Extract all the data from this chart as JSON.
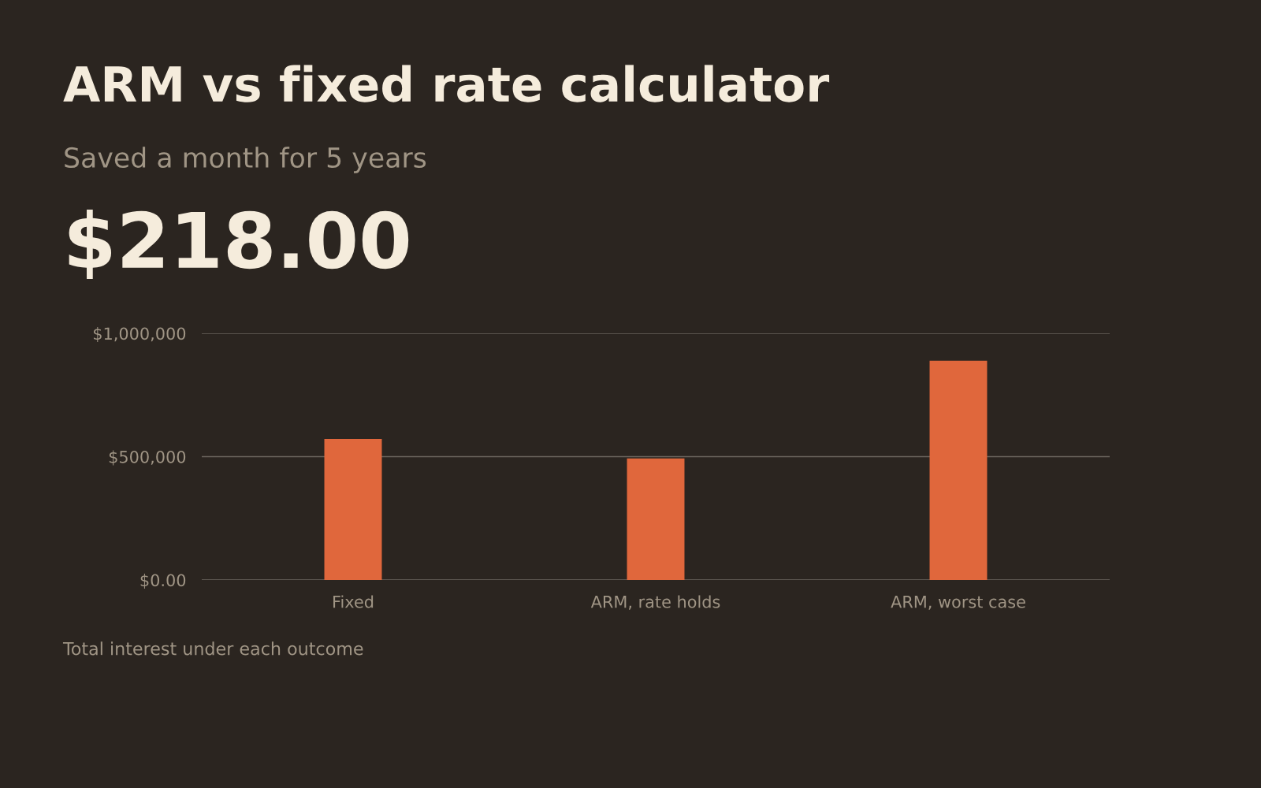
{
  "chart_data": {
    "type": "bar",
    "title": "ARM vs fixed rate calculator",
    "subtitle": "Saved a month for 5 years",
    "annotations": [
      "$218.00",
      "Total interest under each outcome"
    ],
    "categories": [
      "Fixed",
      "ARM, rate holds",
      "ARM, worst case"
    ],
    "values": [
      572000,
      493000,
      889000
    ],
    "color": "#e0673c",
    "ylim": [
      0,
      1000000
    ],
    "yticks": [
      {
        "value": 0,
        "label": "$0.00"
      },
      {
        "value": 500000,
        "label": "$500,000"
      },
      {
        "value": 1000000,
        "label": "$1,000,000"
      }
    ],
    "grid": "y",
    "legend": false
  }
}
